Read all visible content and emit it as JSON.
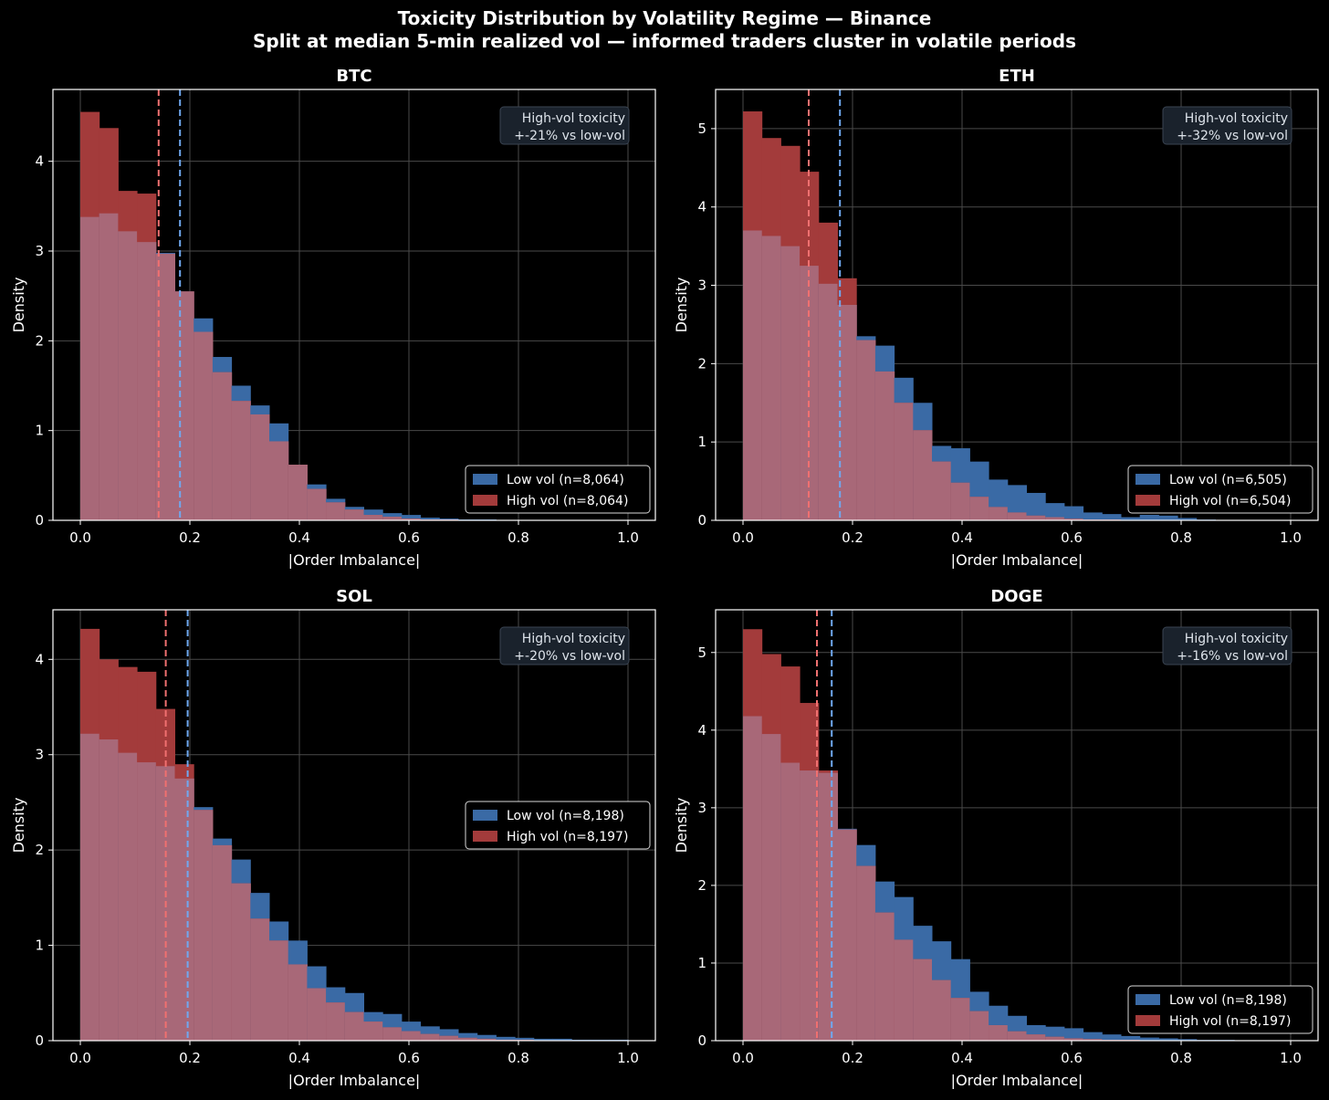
{
  "figure": {
    "title": "Toxicity Distribution by Volatility Regime — Binance",
    "subtitle": "Split at median 5-min realized vol — informed traders cluster in volatile periods",
    "background": "#000000"
  },
  "colors": {
    "low_vol_fill": "#3a6aa5",
    "high_vol_fill": "#a33b3b",
    "overlap_fill": "#a86878",
    "low_vol_median_line": "#6fa8f0",
    "high_vol_median_line": "#f07070",
    "grid": "#4a4a4a",
    "axes": "#ffffff",
    "annotation_bg": "#1a222c",
    "annotation_text": "#dde3ea"
  },
  "chart_data": [
    {
      "type": "histogram",
      "title": "BTC",
      "xlabel": "|Order Imbalance|",
      "ylabel": "Density",
      "xlim": [
        -0.05,
        1.05
      ],
      "ylim": [
        0,
        4.8
      ],
      "xticks": [
        0.0,
        0.2,
        0.4,
        0.6,
        0.8,
        1.0
      ],
      "xtick_labels": [
        "0.0",
        "0.2",
        "0.4",
        "0.6",
        "0.8",
        "1.0"
      ],
      "yticks": [
        0,
        1,
        2,
        3,
        4
      ],
      "grid": true,
      "bin_width": 0.0345,
      "series": [
        {
          "name": "Low vol (n=8,064)",
          "medianline": 0.182,
          "values": [
            3.38,
            3.42,
            3.22,
            3.1,
            2.98,
            2.55,
            2.25,
            1.82,
            1.5,
            1.28,
            1.08,
            0.62,
            0.4,
            0.24,
            0.15,
            0.12,
            0.08,
            0.06,
            0.03,
            0.02,
            0.01,
            0.01,
            0,
            0,
            0,
            0,
            0,
            0,
            0
          ]
        },
        {
          "name": "High vol (n=8,064)",
          "medianline": 0.143,
          "values": [
            4.55,
            4.37,
            3.67,
            3.64,
            2.97,
            2.55,
            2.1,
            1.65,
            1.33,
            1.18,
            0.88,
            0.62,
            0.35,
            0.2,
            0.12,
            0.06,
            0.04,
            0.02,
            0.01,
            0.01,
            0,
            0,
            0,
            0,
            0,
            0,
            0,
            0,
            0
          ]
        }
      ],
      "legend_loc": "lower right",
      "annotation": {
        "line1": "High-vol toxicity",
        "line2": "+-21% vs low-vol"
      }
    },
    {
      "type": "histogram",
      "title": "ETH",
      "xlabel": "|Order Imbalance|",
      "ylabel": "Density",
      "xlim": [
        -0.05,
        1.05
      ],
      "ylim": [
        0,
        5.5
      ],
      "xticks": [
        0.0,
        0.2,
        0.4,
        0.6,
        0.8,
        1.0
      ],
      "xtick_labels": [
        "0.0",
        "0.2",
        "0.4",
        "0.6",
        "0.8",
        "1.0"
      ],
      "yticks": [
        0,
        1,
        2,
        3,
        4,
        5
      ],
      "grid": true,
      "bin_width": 0.0345,
      "series": [
        {
          "name": "Low vol (n=6,505)",
          "medianline": 0.177,
          "values": [
            3.7,
            3.63,
            3.5,
            3.25,
            3.02,
            2.75,
            2.35,
            2.23,
            1.82,
            1.5,
            0.95,
            0.92,
            0.75,
            0.52,
            0.45,
            0.35,
            0.22,
            0.18,
            0.1,
            0.08,
            0.04,
            0.07,
            0.06,
            0.03,
            0.01,
            0,
            0,
            0,
            0
          ]
        },
        {
          "name": "High vol (n=6,504)",
          "medianline": 0.12,
          "values": [
            5.22,
            4.88,
            4.78,
            4.45,
            3.8,
            3.09,
            2.3,
            1.9,
            1.5,
            1.15,
            0.75,
            0.48,
            0.3,
            0.17,
            0.1,
            0.06,
            0.04,
            0.02,
            0.01,
            0.01,
            0,
            0,
            0,
            0,
            0,
            0,
            0,
            0,
            0
          ]
        }
      ],
      "legend_loc": "lower right",
      "annotation": {
        "line1": "High-vol toxicity",
        "line2": "+-32% vs low-vol"
      }
    },
    {
      "type": "histogram",
      "title": "SOL",
      "xlabel": "|Order Imbalance|",
      "ylabel": "Density",
      "xlim": [
        -0.05,
        1.05
      ],
      "ylim": [
        0,
        4.52
      ],
      "xticks": [
        0.0,
        0.2,
        0.4,
        0.6,
        0.8,
        1.0
      ],
      "xtick_labels": [
        "0.0",
        "0.2",
        "0.4",
        "0.6",
        "0.8",
        "1.0"
      ],
      "yticks": [
        0,
        1,
        2,
        3,
        4
      ],
      "grid": true,
      "bin_width": 0.0345,
      "series": [
        {
          "name": "Low vol (n=8,198)",
          "medianline": 0.196,
          "values": [
            3.22,
            3.16,
            3.02,
            2.92,
            2.88,
            2.75,
            2.45,
            2.12,
            1.9,
            1.55,
            1.25,
            1.05,
            0.78,
            0.56,
            0.5,
            0.3,
            0.28,
            0.2,
            0.15,
            0.12,
            0.08,
            0.06,
            0.04,
            0.03,
            0.02,
            0.02,
            0.01,
            0.01,
            0.01
          ]
        },
        {
          "name": "High vol (n=8,197)",
          "medianline": 0.156,
          "values": [
            4.32,
            4.0,
            3.92,
            3.87,
            3.48,
            2.9,
            2.42,
            2.05,
            1.65,
            1.28,
            1.05,
            0.8,
            0.55,
            0.4,
            0.3,
            0.2,
            0.14,
            0.1,
            0.07,
            0.05,
            0.03,
            0.02,
            0.01,
            0.01,
            0,
            0,
            0,
            0,
            0
          ]
        }
      ],
      "legend_loc": "center right",
      "annotation": {
        "line1": "High-vol toxicity",
        "line2": "+-20% vs low-vol"
      }
    },
    {
      "type": "histogram",
      "title": "DOGE",
      "xlabel": "|Order Imbalance|",
      "ylabel": "Density",
      "xlim": [
        -0.05,
        1.05
      ],
      "ylim": [
        0,
        5.55
      ],
      "xticks": [
        0.0,
        0.2,
        0.4,
        0.6,
        0.8,
        1.0
      ],
      "xtick_labels": [
        "0.0",
        "0.2",
        "0.4",
        "0.6",
        "0.8",
        "1.0"
      ],
      "yticks": [
        0,
        1,
        2,
        3,
        4,
        5
      ],
      "grid": true,
      "bin_width": 0.0345,
      "series": [
        {
          "name": "Low vol (n=8,198)",
          "medianline": 0.162,
          "values": [
            4.18,
            3.95,
            3.58,
            3.48,
            3.45,
            2.73,
            2.52,
            2.05,
            1.85,
            1.48,
            1.28,
            1.05,
            0.63,
            0.45,
            0.32,
            0.2,
            0.18,
            0.16,
            0.11,
            0.08,
            0.06,
            0.04,
            0.03,
            0.02,
            0.01,
            0.01,
            0,
            0,
            0
          ]
        },
        {
          "name": "High vol (n=8,197)",
          "medianline": 0.135,
          "values": [
            5.3,
            4.98,
            4.82,
            4.35,
            3.48,
            2.72,
            2.25,
            1.65,
            1.3,
            1.05,
            0.78,
            0.55,
            0.38,
            0.2,
            0.12,
            0.08,
            0.05,
            0.03,
            0.02,
            0.01,
            0.01,
            0,
            0,
            0,
            0,
            0,
            0,
            0,
            0
          ]
        }
      ],
      "legend_loc": "lower right",
      "annotation": {
        "line1": "High-vol toxicity",
        "line2": "+-16% vs low-vol"
      }
    }
  ]
}
